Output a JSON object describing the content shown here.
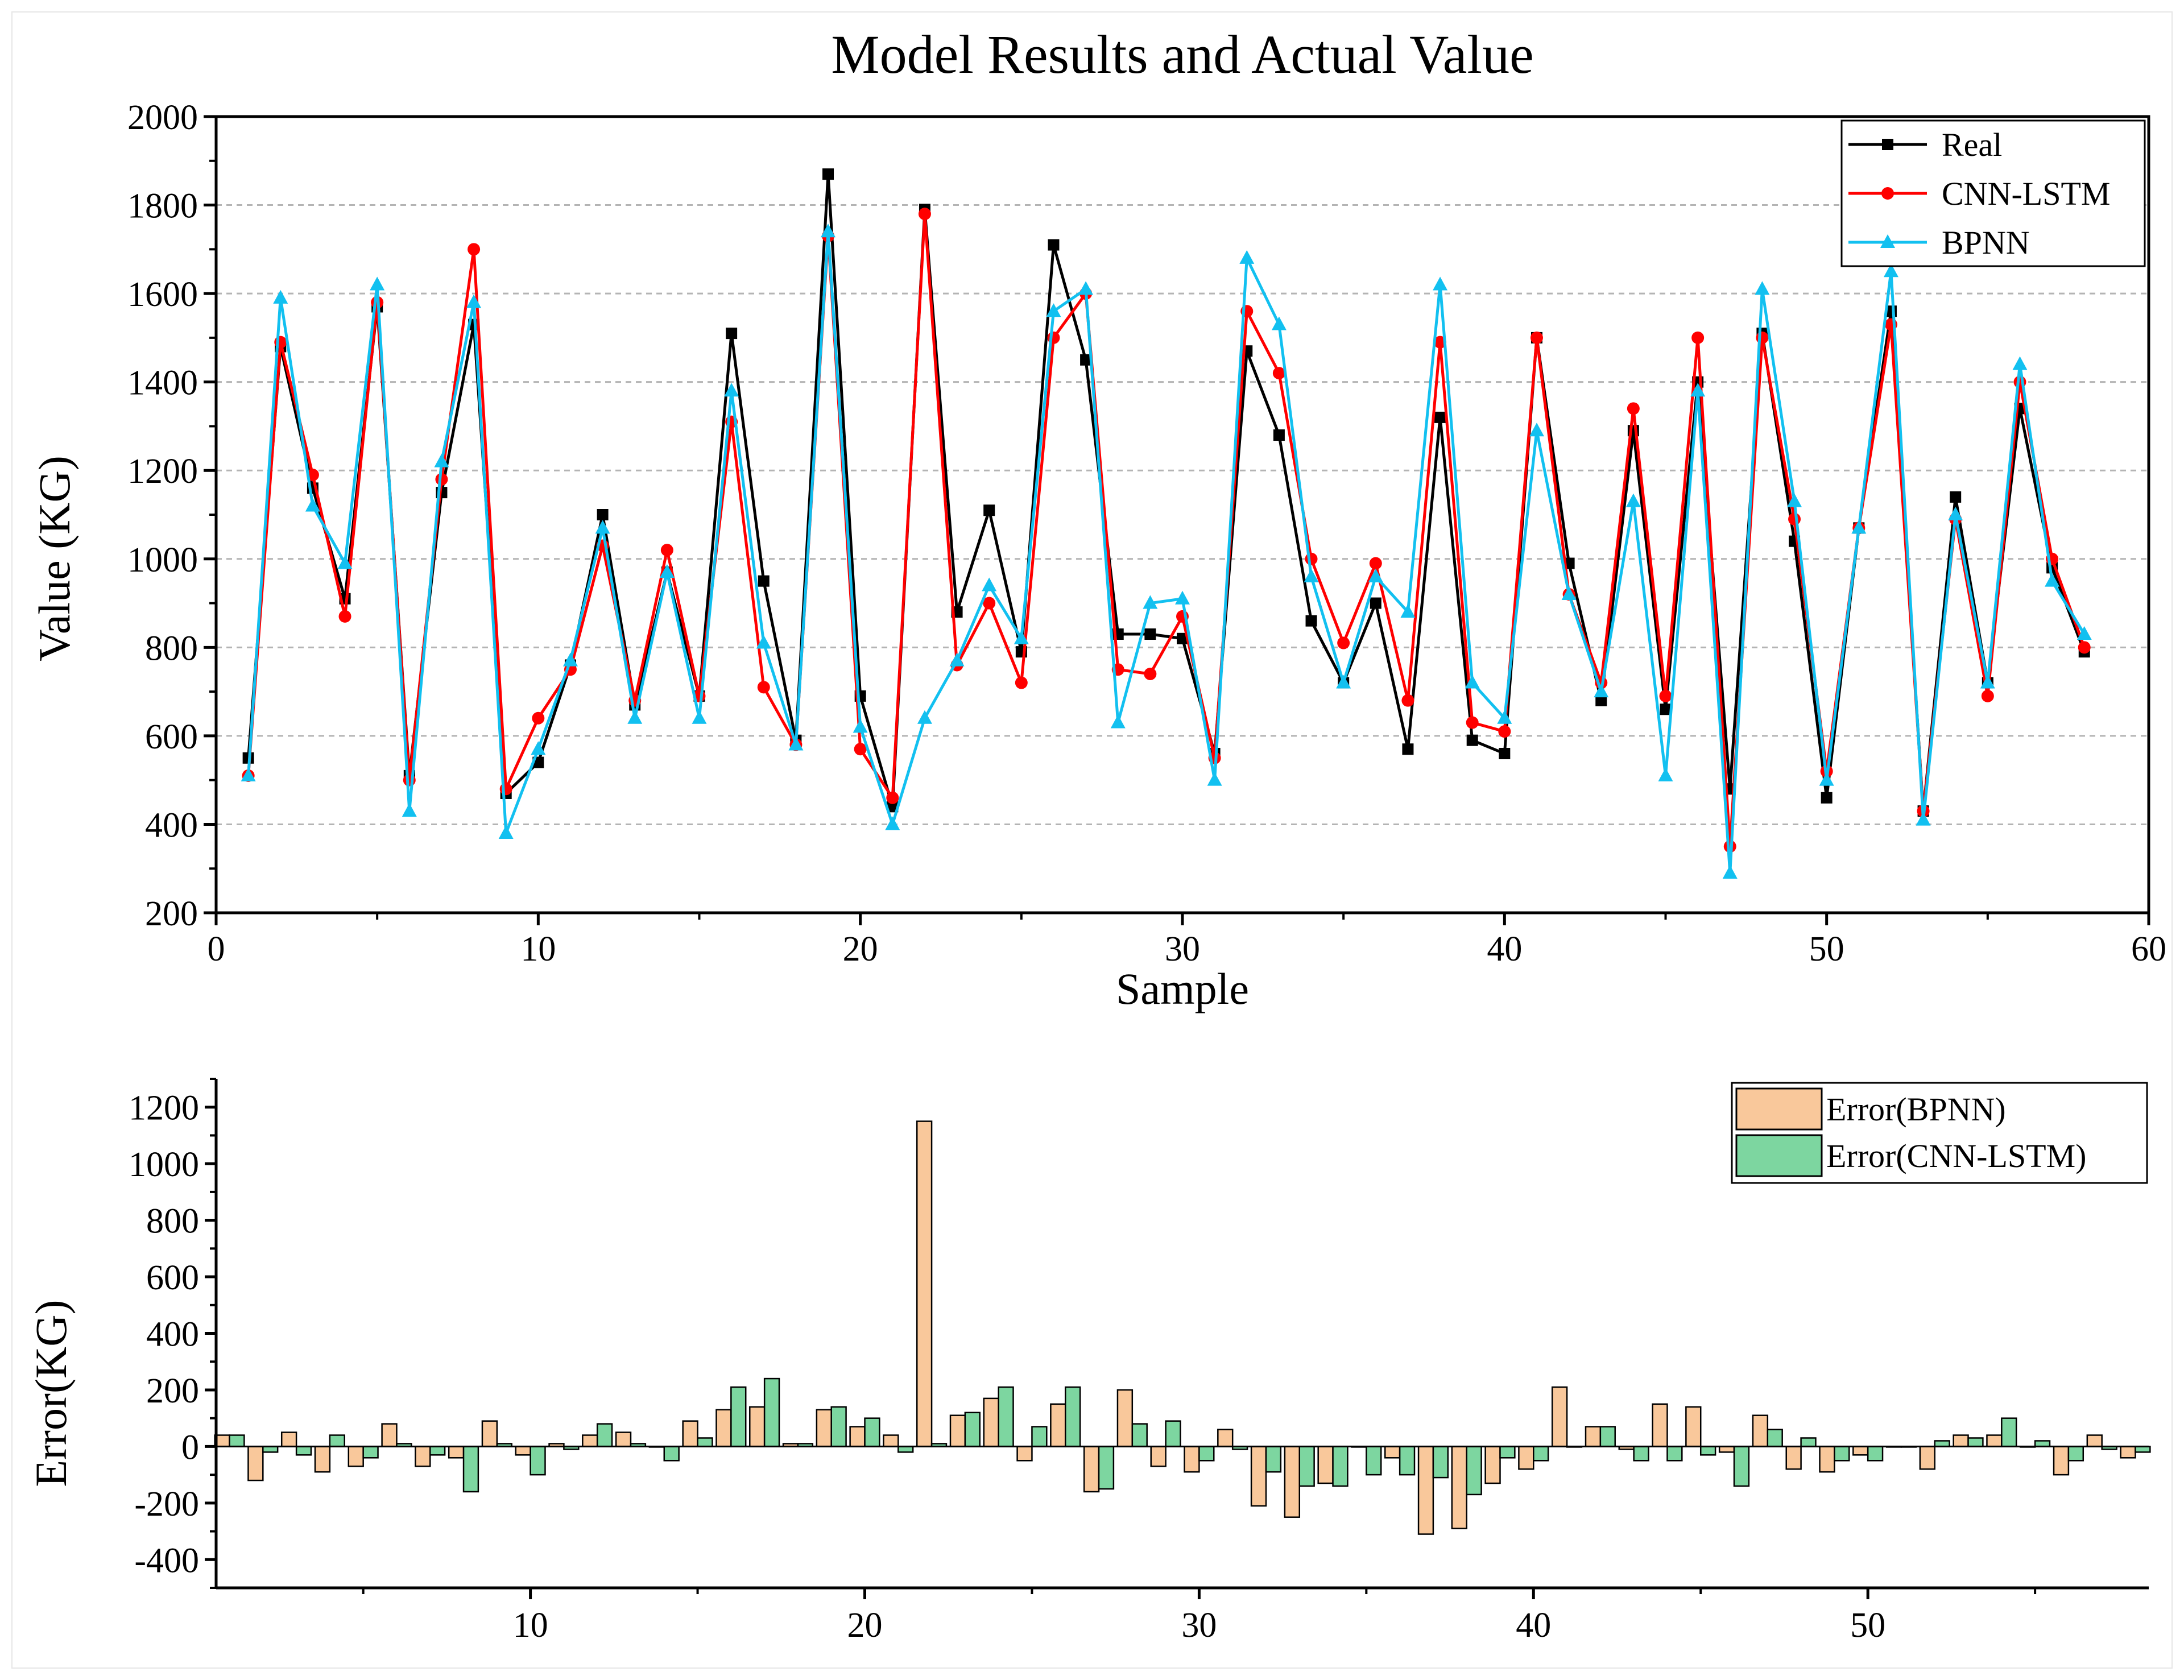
{
  "chart_data": [
    {
      "type": "line",
      "title": "Model Results and Actual Value",
      "xlabel": "Sample",
      "ylabel": "Value (KG)",
      "xlim": [
        0,
        60
      ],
      "ylim": [
        200,
        2000
      ],
      "xticks": [
        0,
        10,
        20,
        30,
        40,
        50,
        60
      ],
      "yticks": [
        200,
        400,
        600,
        800,
        1000,
        1200,
        1400,
        1600,
        1800,
        2000
      ],
      "grid": true,
      "legend_position": "top-right",
      "x": [
        1,
        2,
        3,
        4,
        5,
        6,
        7,
        8,
        9,
        10,
        11,
        12,
        13,
        14,
        15,
        16,
        17,
        18,
        19,
        20,
        21,
        22,
        23,
        24,
        25,
        26,
        27,
        28,
        29,
        30,
        31,
        32,
        33,
        34,
        35,
        36,
        37,
        38,
        39,
        40,
        41,
        42,
        43,
        44,
        45,
        46,
        47,
        48,
        49,
        50,
        51,
        52,
        53,
        54,
        55,
        56,
        57,
        58
      ],
      "series": [
        {
          "name": "Real",
          "color": "#000000",
          "marker": "square",
          "values": [
            550,
            1480,
            1160,
            910,
            1570,
            510,
            1150,
            1530,
            470,
            540,
            760,
            1100,
            670,
            970,
            690,
            1510,
            950,
            590,
            1870,
            690,
            440,
            1790,
            880,
            1110,
            790,
            1710,
            1450,
            830,
            830,
            820,
            560,
            1470,
            1280,
            860,
            720,
            900,
            570,
            1320,
            590,
            560,
            1500,
            990,
            680,
            1290,
            660,
            1400,
            480,
            1510,
            1040,
            460,
            1070,
            1560,
            430,
            1140,
            720,
            1340,
            980,
            790
          ]
        },
        {
          "name": "CNN-LSTM",
          "color": "#ff0000",
          "marker": "circle",
          "values": [
            510,
            1490,
            1190,
            870,
            1580,
            500,
            1180,
            1700,
            480,
            640,
            750,
            1030,
            680,
            1020,
            690,
            1310,
            710,
            580,
            1730,
            570,
            460,
            1780,
            760,
            900,
            720,
            1500,
            1600,
            750,
            740,
            870,
            550,
            1560,
            1420,
            1000,
            810,
            990,
            680,
            1490,
            630,
            610,
            1500,
            920,
            720,
            1340,
            690,
            1500,
            350,
            1500,
            1090,
            520,
            1070,
            1530,
            430,
            1090,
            690,
            1400,
            1000,
            800
          ]
        },
        {
          "name": "BPNN",
          "color": "#12c0f0",
          "marker": "triangle",
          "values": [
            510,
            1590,
            1120,
            990,
            1620,
            430,
            1220,
            1580,
            380,
            570,
            770,
            1070,
            640,
            970,
            640,
            1380,
            810,
            580,
            1740,
            620,
            400,
            640,
            770,
            940,
            820,
            1560,
            1610,
            630,
            900,
            910,
            500,
            1680,
            1530,
            960,
            720,
            960,
            880,
            1620,
            720,
            640,
            1290,
            920,
            700,
            1130,
            510,
            1380,
            290,
            1610,
            1130,
            500,
            1070,
            1650,
            410,
            1100,
            720,
            1440,
            950,
            830
          ]
        }
      ]
    },
    {
      "type": "bar",
      "title": "",
      "xlabel": "",
      "ylabel": "Error(KG)",
      "xlim": [
        0.6,
        58.4
      ],
      "ylim": [
        -500,
        1300
      ],
      "xticks": [
        10,
        20,
        30,
        40,
        50
      ],
      "yticks": [
        -400,
        -200,
        0,
        200,
        400,
        600,
        800,
        1000,
        1200
      ],
      "grid": false,
      "legend_position": "top-right",
      "categories": [
        1,
        2,
        3,
        4,
        5,
        6,
        7,
        8,
        9,
        10,
        11,
        12,
        13,
        14,
        15,
        16,
        17,
        18,
        19,
        20,
        21,
        22,
        23,
        24,
        25,
        26,
        27,
        28,
        29,
        30,
        31,
        32,
        33,
        34,
        35,
        36,
        37,
        38,
        39,
        40,
        41,
        42,
        43,
        44,
        45,
        46,
        47,
        48,
        49,
        50,
        51,
        52,
        53,
        54,
        55,
        56,
        57,
        58
      ],
      "series": [
        {
          "name": "Error(BPNN)",
          "color": "#f9c89b",
          "values": [
            40,
            -120,
            50,
            -90,
            -70,
            80,
            -70,
            -40,
            90,
            -30,
            10,
            40,
            50,
            0,
            90,
            130,
            140,
            10,
            130,
            70,
            40,
            1150,
            110,
            170,
            -50,
            150,
            -160,
            200,
            -70,
            -90,
            60,
            -210,
            -250,
            -130,
            0,
            -40,
            -310,
            -290,
            -130,
            -80,
            210,
            70,
            -10,
            150,
            140,
            -20,
            110,
            -80,
            -90,
            -30,
            0,
            -80,
            40,
            40,
            0,
            -100,
            40,
            -40
          ]
        },
        {
          "name": "Error(CNN-LSTM)",
          "color": "#7dd6a0",
          "values": [
            40,
            -20,
            -30,
            40,
            -40,
            10,
            -30,
            -160,
            10,
            -100,
            -10,
            80,
            10,
            -50,
            30,
            210,
            240,
            10,
            140,
            100,
            -20,
            10,
            120,
            210,
            70,
            210,
            -150,
            80,
            90,
            -50,
            -10,
            -90,
            -140,
            -140,
            -100,
            -100,
            -110,
            -170,
            -40,
            -50,
            0,
            70,
            -50,
            -50,
            -30,
            -140,
            60,
            30,
            -50,
            -50,
            0,
            20,
            30,
            100,
            20,
            -50,
            -10,
            -20
          ]
        }
      ]
    }
  ]
}
